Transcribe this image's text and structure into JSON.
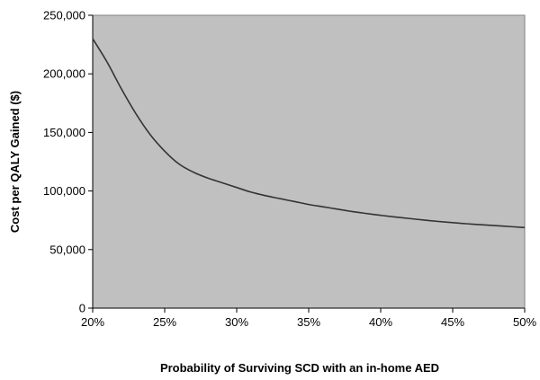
{
  "chart_data": {
    "type": "line",
    "title": "",
    "xlabel": "Probability of Surviving SCD with an in-home AED",
    "ylabel": "Cost per QALY Gained ($)",
    "xlim": [
      0.2,
      0.5
    ],
    "ylim": [
      0,
      250000
    ],
    "x_ticks": [
      0.2,
      0.25,
      0.3,
      0.35,
      0.4,
      0.45,
      0.5
    ],
    "x_tick_labels": [
      "20%",
      "25%",
      "30%",
      "35%",
      "40%",
      "45%",
      "50%"
    ],
    "y_ticks": [
      0,
      50000,
      100000,
      150000,
      200000,
      250000
    ],
    "y_tick_labels": [
      "0",
      "50,000",
      "100,000",
      "150,000",
      "200,000",
      "250,000"
    ],
    "grid": false,
    "legend": "none",
    "plot_background": "#c0c0c0",
    "line_color": "#333333",
    "series": [
      {
        "x": [
          0.2,
          0.21,
          0.22,
          0.23,
          0.24,
          0.25,
          0.26,
          0.27,
          0.28,
          0.29,
          0.3,
          0.31,
          0.32,
          0.33,
          0.34,
          0.35,
          0.36,
          0.37,
          0.38,
          0.39,
          0.4,
          0.41,
          0.42,
          0.43,
          0.44,
          0.45,
          0.46,
          0.47,
          0.48,
          0.49,
          0.5
        ],
        "values": [
          230000,
          210000,
          187000,
          166000,
          148000,
          134000,
          123000,
          116000,
          111000,
          107000,
          103000,
          99000,
          96000,
          93500,
          91000,
          88500,
          86500,
          84500,
          82500,
          80800,
          79200,
          77800,
          76500,
          75200,
          74000,
          73000,
          72000,
          71200,
          70400,
          69600,
          68800
        ]
      }
    ]
  }
}
